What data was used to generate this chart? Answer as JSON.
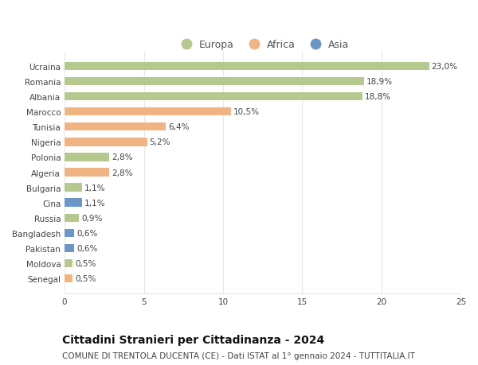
{
  "countries": [
    "Ucraina",
    "Romania",
    "Albania",
    "Marocco",
    "Tunisia",
    "Nigeria",
    "Polonia",
    "Algeria",
    "Bulgaria",
    "Cina",
    "Russia",
    "Bangladesh",
    "Pakistan",
    "Moldova",
    "Senegal"
  ],
  "values": [
    23.0,
    18.9,
    18.8,
    10.5,
    6.4,
    5.2,
    2.8,
    2.8,
    1.1,
    1.1,
    0.9,
    0.6,
    0.6,
    0.5,
    0.5
  ],
  "labels": [
    "23,0%",
    "18,9%",
    "18,8%",
    "10,5%",
    "6,4%",
    "5,2%",
    "2,8%",
    "2,8%",
    "1,1%",
    "1,1%",
    "0,9%",
    "0,6%",
    "0,6%",
    "0,5%",
    "0,5%"
  ],
  "continents": [
    "Europa",
    "Europa",
    "Europa",
    "Africa",
    "Africa",
    "Africa",
    "Europa",
    "Africa",
    "Europa",
    "Asia",
    "Europa",
    "Asia",
    "Asia",
    "Europa",
    "Africa"
  ],
  "colors": {
    "Europa": "#b5c98e",
    "Africa": "#f0b482",
    "Asia": "#6b96c8"
  },
  "xlim": [
    0,
    25
  ],
  "xticks": [
    0,
    5,
    10,
    15,
    20,
    25
  ],
  "title": "Cittadini Stranieri per Cittadinanza - 2024",
  "subtitle": "COMUNE DI TRENTOLA DUCENTA (CE) - Dati ISTAT al 1° gennaio 2024 - TUTTITALIA.IT",
  "background_color": "#ffffff",
  "grid_color": "#e8e8e8",
  "bar_height": 0.55,
  "title_fontsize": 10,
  "subtitle_fontsize": 7.5,
  "label_fontsize": 7.5,
  "tick_fontsize": 7.5,
  "legend_fontsize": 9
}
